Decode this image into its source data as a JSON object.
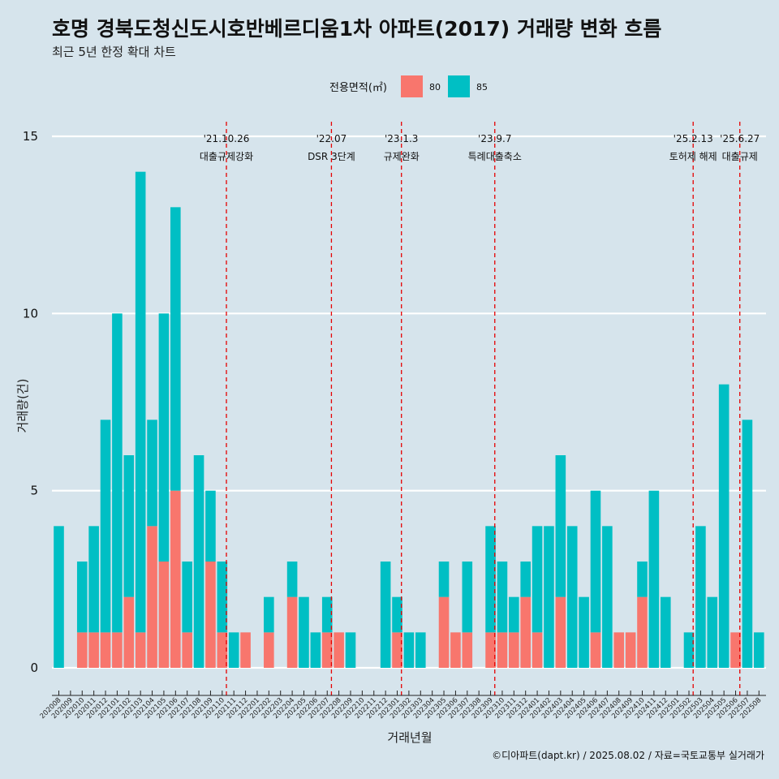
{
  "title": "호명 경북도청신도시호반베르디움1차 아파트(2017) 거래량 변화 흐름",
  "subtitle": "최근 5년 한정 확대 차트",
  "caption": "©디아파트(dapt.kr) / 2025.08.02 / 자료=국토교통부 실거래가",
  "colors": {
    "s80": "#f8766d",
    "s85": "#00bfc4",
    "event_line": "#e60000",
    "background": "#d6e4ec",
    "grid": "#ffffff"
  },
  "chart_data": {
    "type": "bar",
    "stacked": true,
    "xlabel": "거래년월",
    "ylabel": "거래량(건)",
    "ylim": [
      0,
      15
    ],
    "yticks": [
      0,
      5,
      10,
      15
    ],
    "legend": {
      "title": "전용면적(㎡)",
      "position": "top"
    },
    "categories": [
      "202008",
      "202009",
      "202010",
      "202011",
      "202012",
      "202101",
      "202102",
      "202103",
      "202104",
      "202105",
      "202106",
      "202107",
      "202108",
      "202109",
      "202110",
      "202111",
      "202112",
      "202201",
      "202202",
      "202203",
      "202204",
      "202205",
      "202206",
      "202207",
      "202208",
      "202209",
      "202210",
      "202211",
      "202212",
      "202301",
      "202302",
      "202303",
      "202304",
      "202305",
      "202306",
      "202307",
      "202308",
      "202309",
      "202310",
      "202311",
      "202312",
      "202401",
      "202402",
      "202403",
      "202404",
      "202405",
      "202406",
      "202407",
      "202408",
      "202409",
      "202410",
      "202411",
      "202412",
      "202501",
      "202502",
      "202503",
      "202504",
      "202505",
      "202506",
      "202507",
      "202508"
    ],
    "series": [
      {
        "name": "80",
        "values": [
          0,
          0,
          1,
          1,
          1,
          1,
          2,
          1,
          4,
          3,
          5,
          1,
          0,
          3,
          1,
          0,
          1,
          0,
          1,
          0,
          2,
          0,
          0,
          1,
          1,
          0,
          0,
          0,
          0,
          1,
          0,
          0,
          0,
          2,
          1,
          1,
          0,
          1,
          1,
          1,
          2,
          1,
          0,
          2,
          0,
          0,
          1,
          0,
          1,
          1,
          2,
          0,
          0,
          0,
          0,
          0,
          0,
          0,
          1,
          0,
          0
        ]
      },
      {
        "name": "85",
        "values": [
          4,
          0,
          2,
          3,
          6,
          9,
          4,
          13,
          3,
          7,
          8,
          2,
          6,
          2,
          2,
          1,
          0,
          0,
          1,
          0,
          1,
          2,
          1,
          1,
          0,
          1,
          0,
          0,
          3,
          1,
          1,
          1,
          0,
          1,
          0,
          2,
          0,
          3,
          2,
          1,
          1,
          3,
          4,
          4,
          4,
          2,
          4,
          4,
          0,
          0,
          1,
          5,
          2,
          0,
          1,
          4,
          2,
          8,
          0,
          7,
          1
        ]
      }
    ],
    "events": [
      {
        "date": "'21.10.26",
        "label": "대출규제강화",
        "after_category": "202110"
      },
      {
        "date": "'22.07",
        "label": "DSR 3단계",
        "after_category": "202207"
      },
      {
        "date": "'23.1.3",
        "label": "규제완화",
        "after_category": "202301"
      },
      {
        "date": "'23.9.7",
        "label": "특례대출축소",
        "after_category": "202309"
      },
      {
        "date": "'25.2.13",
        "label": "토허제 해제",
        "after_category": "202502"
      },
      {
        "date": "'25.6.27",
        "label": "대출규제",
        "after_category": "202506"
      }
    ]
  }
}
